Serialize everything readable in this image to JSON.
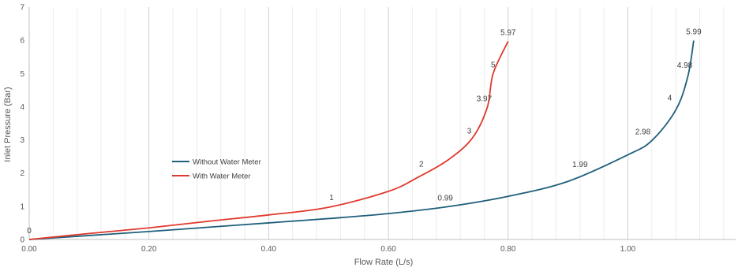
{
  "chart_data": {
    "type": "line",
    "xlabel": "Flow Rate (L/s)",
    "ylabel": "Inlet Pressure (Bar)",
    "xlim": [
      0,
      1.18
    ],
    "ylim": [
      0,
      7
    ],
    "x_ticks": [
      0,
      0.2,
      0.4,
      0.6,
      0.8,
      1.0
    ],
    "x_tick_labels": [
      "0.00",
      "0.20",
      "0.40",
      "0.60",
      "0.80",
      "1.00"
    ],
    "y_ticks": [
      0,
      1,
      2,
      3,
      4,
      5,
      6,
      7
    ],
    "y_tick_labels": [
      "0",
      "1",
      "2",
      "3",
      "4",
      "5",
      "6",
      "7"
    ],
    "grid": {
      "major_vertical": true,
      "minor_vertical": true,
      "horizontal": false
    },
    "legend_position": "left-center",
    "series": [
      {
        "name": "Without Water Meter",
        "color": "#1f5f7a",
        "points": [
          [
            0,
            0
          ],
          [
            0.1,
            0.12
          ],
          [
            0.2,
            0.24
          ],
          [
            0.3,
            0.37
          ],
          [
            0.4,
            0.5
          ],
          [
            0.5,
            0.63
          ],
          [
            0.6,
            0.78
          ],
          [
            0.7,
            0.99
          ],
          [
            0.8,
            1.3
          ],
          [
            0.9,
            1.75
          ],
          [
            1.0,
            2.55
          ],
          [
            1.04,
            2.98
          ],
          [
            1.08,
            3.9
          ],
          [
            1.1,
            4.9
          ],
          [
            1.11,
            5.99
          ]
        ],
        "labels": [
          {
            "text": "0.99",
            "x": 0.695,
            "y": 0.99
          },
          {
            "text": "1.99",
            "x": 0.92,
            "y": 1.99
          },
          {
            "text": "2.98",
            "x": 1.025,
            "y": 2.98
          },
          {
            "text": "4",
            "x": 1.07,
            "y": 4.0
          },
          {
            "text": "4.98",
            "x": 1.095,
            "y": 4.98
          },
          {
            "text": "5.99",
            "x": 1.11,
            "y": 5.99
          }
        ]
      },
      {
        "name": "With Water Meter",
        "color": "#e03a2e",
        "points": [
          [
            0,
            0
          ],
          [
            0.1,
            0.18
          ],
          [
            0.2,
            0.35
          ],
          [
            0.3,
            0.55
          ],
          [
            0.4,
            0.74
          ],
          [
            0.5,
            0.97
          ],
          [
            0.6,
            1.45
          ],
          [
            0.65,
            1.88
          ],
          [
            0.7,
            2.4
          ],
          [
            0.74,
            3.05
          ],
          [
            0.765,
            3.97
          ],
          [
            0.775,
            5.0
          ],
          [
            0.8,
            5.97
          ]
        ],
        "labels": [
          {
            "text": "0",
            "x": 0.0,
            "y": 0.0
          },
          {
            "text": "1",
            "x": 0.505,
            "y": 1.0
          },
          {
            "text": "2",
            "x": 0.655,
            "y": 2.0
          },
          {
            "text": "3",
            "x": 0.735,
            "y": 3.0
          },
          {
            "text": "3.97",
            "x": 0.76,
            "y": 3.97
          },
          {
            "text": "5",
            "x": 0.775,
            "y": 5.0
          },
          {
            "text": "5.97",
            "x": 0.8,
            "y": 5.97
          }
        ]
      }
    ]
  }
}
